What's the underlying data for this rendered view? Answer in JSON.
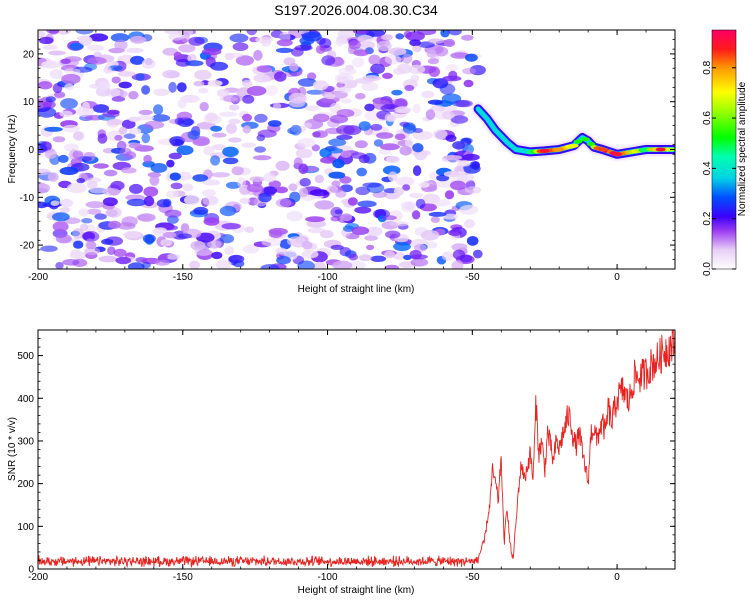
{
  "chart_data": [
    {
      "type": "heatmap",
      "title": "S197.2026.004.08.30.C34",
      "xlabel": "Height of straight line (km)",
      "ylabel": "Frequency (Hz)",
      "xlim": [
        -200,
        20
      ],
      "ylim": [
        -25,
        25
      ],
      "x_ticks": [
        -200,
        -150,
        -100,
        -50,
        0
      ],
      "x_tick_labels": [
        "-200",
        "-150",
        "-100",
        "-50",
        "0"
      ],
      "y_ticks": [
        -20,
        -10,
        0,
        10,
        20
      ],
      "y_tick_labels": [
        "-20",
        "-10",
        "0",
        "10",
        "20"
      ],
      "noise_region_x": [
        -200,
        -48
      ],
      "noise_amplitude_range": [
        0.05,
        0.3
      ],
      "signal_track": {
        "x": [
          -48,
          -45,
          -42,
          -38,
          -35,
          -30,
          -25,
          -20,
          -15,
          -12,
          -10,
          -8,
          -5,
          0,
          5,
          10,
          15,
          20
        ],
        "y": [
          8.5,
          6.5,
          4.0,
          1.5,
          0.0,
          -0.5,
          -0.3,
          0.0,
          0.8,
          2.5,
          1.8,
          0.5,
          0.0,
          -1.0,
          -0.5,
          0.0,
          0.0,
          0.0
        ],
        "amplitude": [
          0.3,
          0.3,
          0.3,
          0.35,
          0.35,
          0.45,
          0.9,
          0.8,
          0.7,
          0.5,
          0.45,
          0.7,
          0.85,
          0.9,
          0.7,
          0.5,
          0.9,
          0.5
        ]
      },
      "colorbar": {
        "label": "Normalized spectral amplitude",
        "range": [
          0.0,
          0.95
        ],
        "ticks": [
          0.0,
          0.2,
          0.4,
          0.6,
          0.8
        ],
        "tick_labels": [
          "0.0",
          "0.2",
          "0.4",
          "0.6",
          "0.8"
        ]
      }
    },
    {
      "type": "line",
      "xlabel": "Height of straight line (km)",
      "ylabel": "SNR (10 * v/v)",
      "xlim": [
        -200,
        20
      ],
      "ylim": [
        0,
        560
      ],
      "x_ticks": [
        -200,
        -150,
        -100,
        -50,
        0
      ],
      "x_tick_labels": [
        "-200",
        "-150",
        "-100",
        "-50",
        "0"
      ],
      "y_ticks": [
        0,
        100,
        200,
        300,
        400,
        500
      ],
      "y_tick_labels": [
        "0",
        "100",
        "200",
        "300",
        "400",
        "500"
      ],
      "color": "#e8231f",
      "series": [
        {
          "name": "SNR",
          "x": [
            -200,
            -150,
            -100,
            -50,
            -48,
            -46,
            -44,
            -43,
            -42,
            -41,
            -40,
            -39.5,
            -39,
            -38,
            -37,
            -36,
            -35,
            -34,
            -33,
            -32,
            -31,
            -30,
            -29,
            -28,
            -27,
            -26,
            -25,
            -24,
            -23,
            -22,
            -21,
            -20,
            -19,
            -18,
            -17,
            -16,
            -15,
            -14,
            -13,
            -12,
            -11,
            -10,
            -9,
            -8,
            -7,
            -6,
            -5,
            -4,
            -3,
            -2,
            -1,
            0,
            2,
            4,
            6,
            8,
            10,
            12,
            14,
            16,
            18,
            20
          ],
          "y": [
            18,
            20,
            18,
            20,
            28,
            60,
            150,
            230,
            200,
            160,
            270,
            150,
            60,
            150,
            60,
            20,
            100,
            190,
            250,
            210,
            240,
            270,
            210,
            390,
            270,
            300,
            230,
            320,
            290,
            250,
            300,
            280,
            310,
            330,
            360,
            350,
            300,
            290,
            320,
            270,
            240,
            200,
            320,
            330,
            300,
            330,
            340,
            320,
            380,
            340,
            370,
            400,
            420,
            390,
            450,
            450,
            460,
            480,
            490,
            510,
            520,
            530
          ]
        }
      ],
      "noise_floor_level": 18,
      "noise_jitter": 12
    }
  ]
}
